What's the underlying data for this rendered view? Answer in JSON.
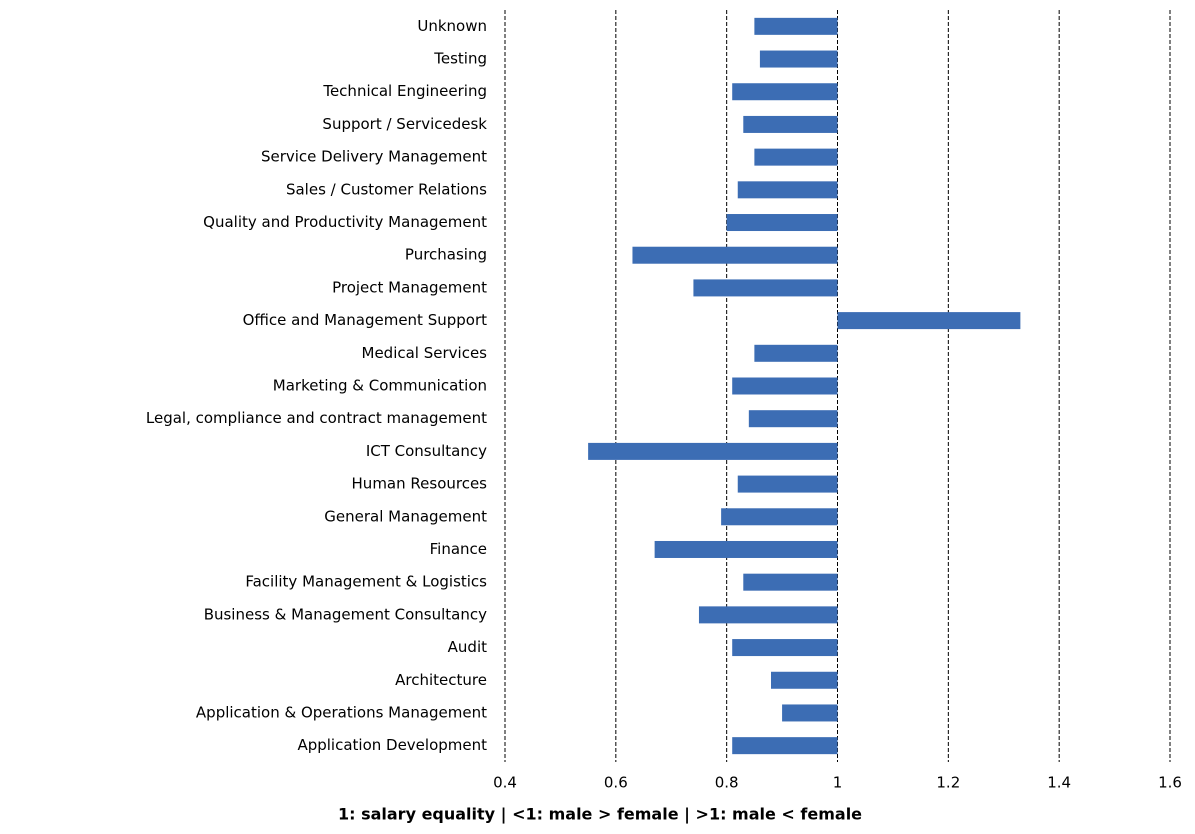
{
  "chart_data": {
    "type": "hbar",
    "x_label": "1: salary equality | <1: male > female | >1: male < female",
    "categories": [
      "Unknown",
      "Testing",
      "Technical Engineering",
      "Support / Servicedesk",
      "Service Delivery Management",
      "Sales / Customer Relations",
      "Quality and Productivity Management",
      "Purchasing",
      "Project Management",
      "Office and Management Support",
      "Medical Services",
      "Marketing & Communication",
      "Legal, compliance and contract management",
      "ICT Consultancy",
      "Human Resources",
      "General Management",
      "Finance",
      "Facility Management & Logistics",
      "Business & Management Consultancy",
      "Audit",
      "Architecture",
      "Application & Operations Management",
      "Application Development"
    ],
    "values": [
      0.85,
      0.86,
      0.81,
      0.83,
      0.85,
      0.82,
      0.8,
      0.63,
      0.74,
      1.33,
      0.85,
      0.81,
      0.84,
      0.55,
      0.82,
      0.79,
      0.67,
      0.83,
      0.75,
      0.81,
      0.88,
      0.9,
      0.81
    ],
    "bar_base": 1,
    "color": "#3c6db4",
    "xlim": [
      0.4,
      1.6
    ],
    "xticks": [
      0.4,
      0.6,
      0.8,
      1,
      1.2,
      1.4,
      1.6
    ],
    "grid": true
  }
}
